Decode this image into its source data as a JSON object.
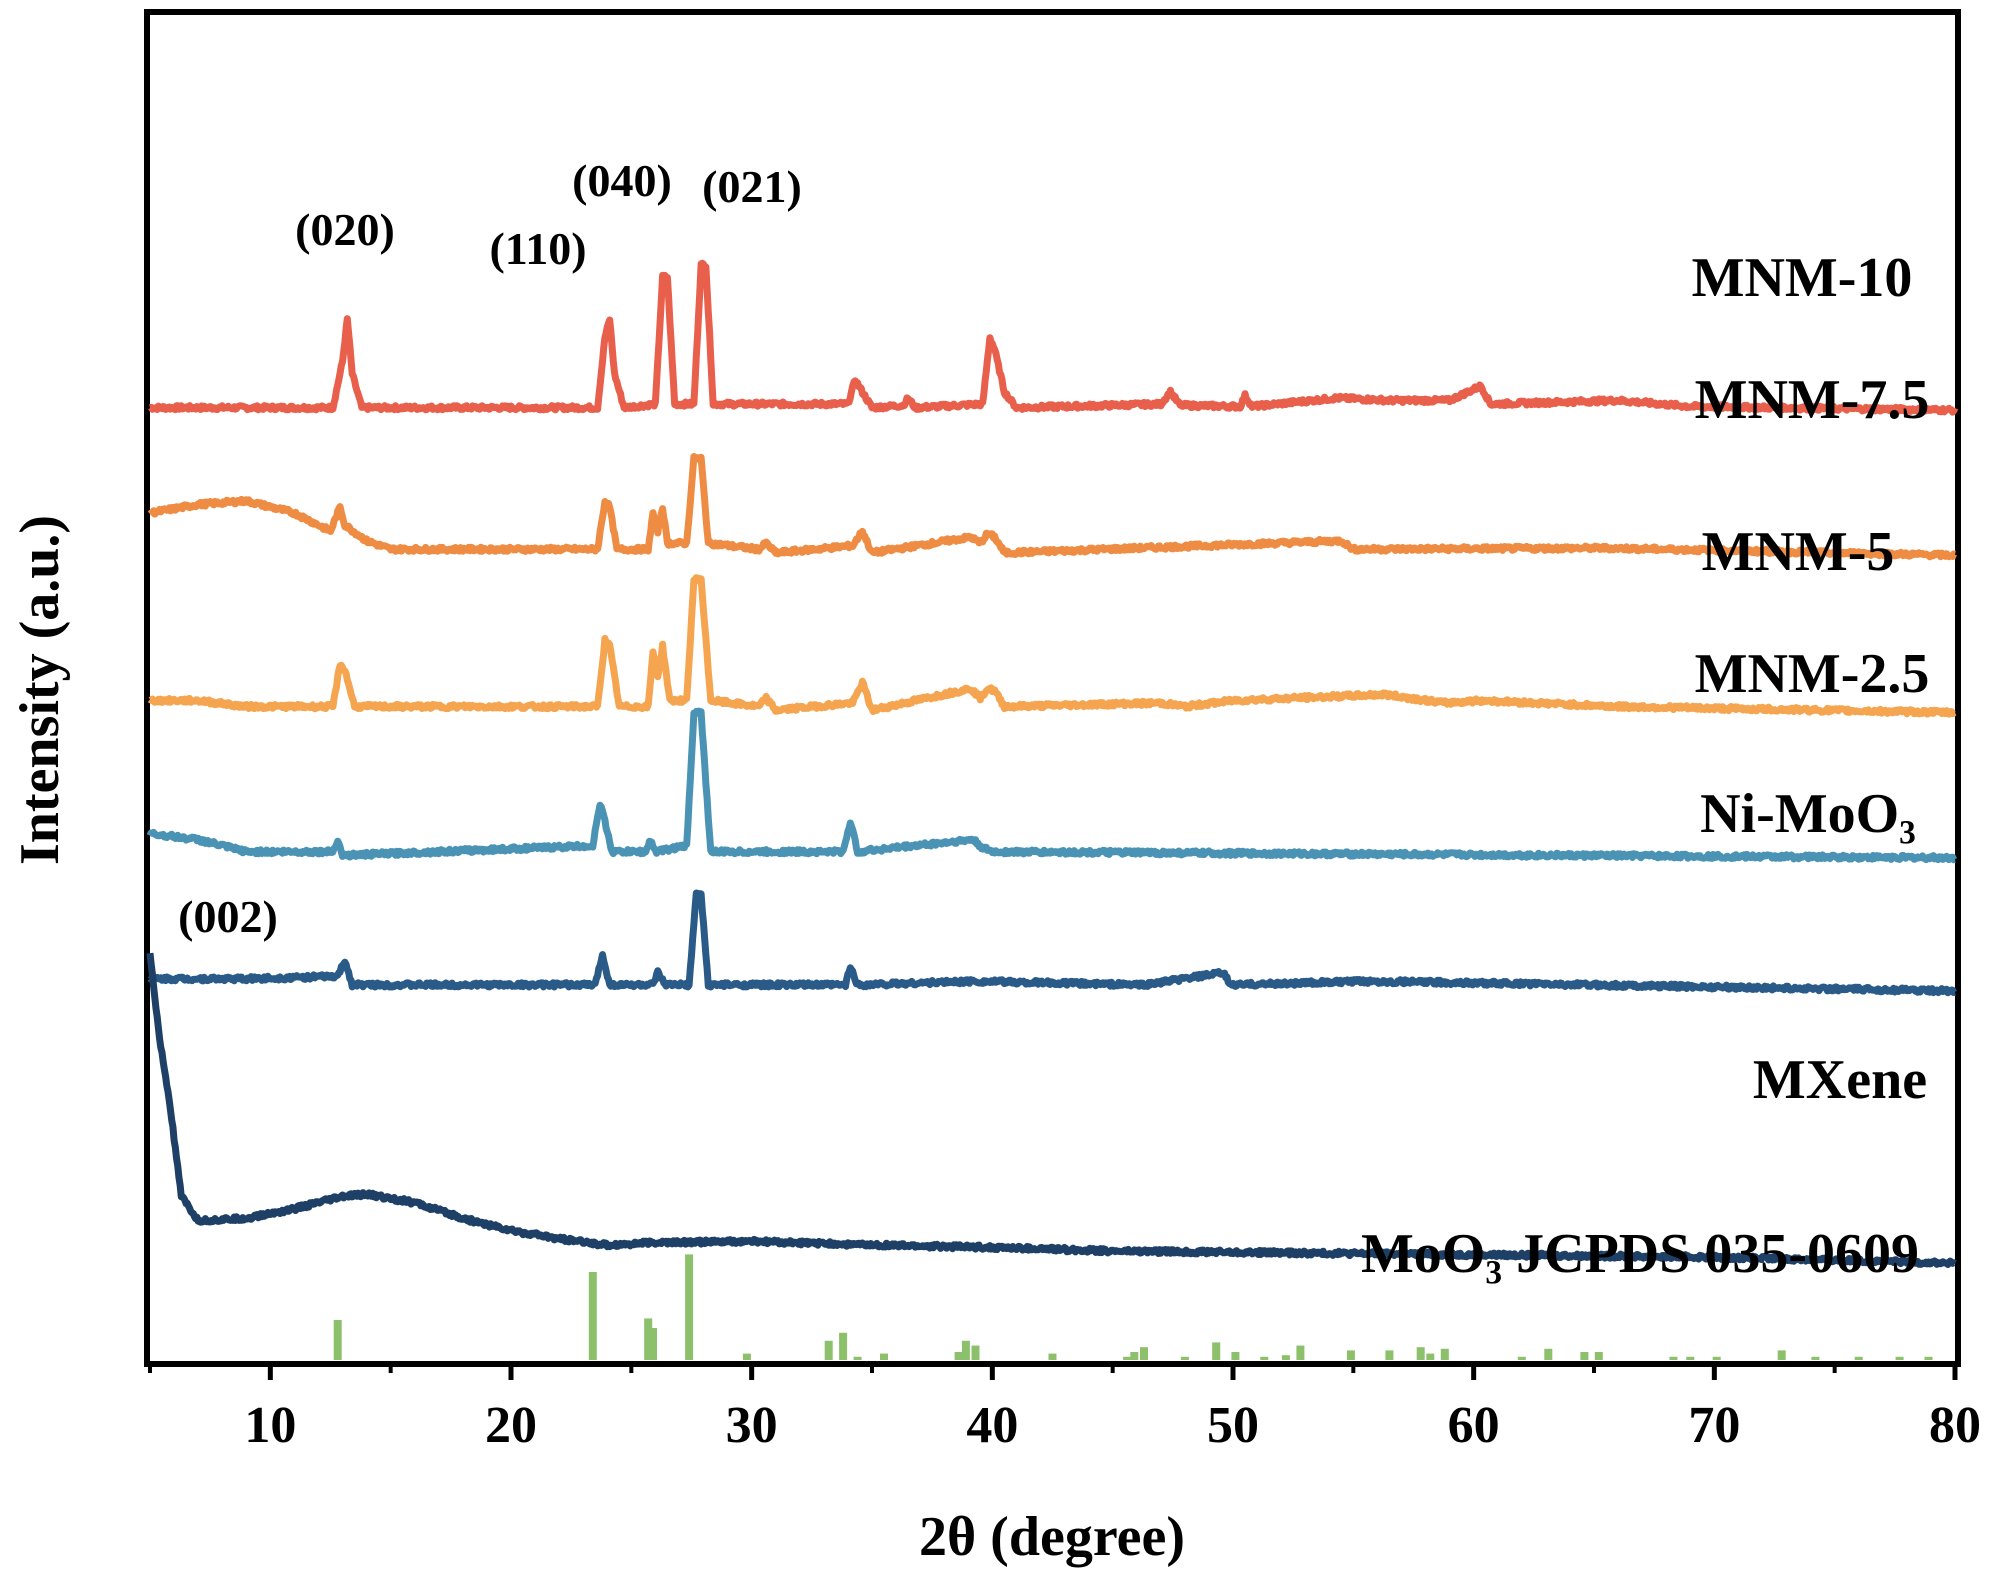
{
  "chart_data": {
    "type": "line",
    "title": "",
    "xlabel": "2θ (degree)",
    "ylabel": "Intensity (a.u.)",
    "xlim": [
      5,
      80
    ],
    "xticks": [
      10,
      20,
      30,
      40,
      50,
      60,
      70,
      80
    ],
    "tick_labels": [
      "10",
      "20",
      "30",
      "40",
      "50",
      "60",
      "70",
      "80"
    ],
    "yticks_shown": false,
    "grid": false,
    "series": [
      {
        "name": "MNM-10",
        "color": "#e8604c",
        "offset": 5.0,
        "points": [
          [
            5,
            0.02
          ],
          [
            12.6,
            0.02
          ],
          [
            13.0,
            0.4
          ],
          [
            13.2,
            0.75
          ],
          [
            13.4,
            0.3
          ],
          [
            13.8,
            0.02
          ],
          [
            23.6,
            0.02
          ],
          [
            23.9,
            0.6
          ],
          [
            24.1,
            0.75
          ],
          [
            24.3,
            0.3
          ],
          [
            24.7,
            0.02
          ],
          [
            26.0,
            0.05
          ],
          [
            26.3,
            1.1
          ],
          [
            26.5,
            1.1
          ],
          [
            26.8,
            0.05
          ],
          [
            27.6,
            0.05
          ],
          [
            27.9,
            1.2
          ],
          [
            28.1,
            1.2
          ],
          [
            28.4,
            0.05
          ],
          [
            34.0,
            0.05
          ],
          [
            34.3,
            0.25
          ],
          [
            34.6,
            0.15
          ],
          [
            35.0,
            0.02
          ],
          [
            36.3,
            0.04
          ],
          [
            36.5,
            0.1
          ],
          [
            36.8,
            0.02
          ],
          [
            39.6,
            0.05
          ],
          [
            39.9,
            0.6
          ],
          [
            40.1,
            0.5
          ],
          [
            40.5,
            0.15
          ],
          [
            41.0,
            0.02
          ],
          [
            47.0,
            0.05
          ],
          [
            47.4,
            0.15
          ],
          [
            47.8,
            0.04
          ],
          [
            50.3,
            0.03
          ],
          [
            50.5,
            0.12
          ],
          [
            50.8,
            0.03
          ],
          [
            54.3,
            0.1
          ],
          [
            56.6,
            0.08
          ],
          [
            59.0,
            0.08
          ],
          [
            60.3,
            0.2
          ],
          [
            60.7,
            0.05
          ],
          [
            66.0,
            0.08
          ],
          [
            69.0,
            0.03
          ],
          [
            80,
            0.0
          ]
        ]
      },
      {
        "name": "MNM-7.5",
        "color": "#ef8c44",
        "offset": 3.8,
        "points": [
          [
            5,
            0.35
          ],
          [
            7,
            0.42
          ],
          [
            9,
            0.45
          ],
          [
            11,
            0.35
          ],
          [
            12.5,
            0.2
          ],
          [
            12.9,
            0.4
          ],
          [
            13.1,
            0.25
          ],
          [
            14,
            0.12
          ],
          [
            15,
            0.05
          ],
          [
            23.6,
            0.05
          ],
          [
            23.9,
            0.45
          ],
          [
            24.1,
            0.4
          ],
          [
            24.4,
            0.05
          ],
          [
            25.7,
            0.05
          ],
          [
            25.9,
            0.35
          ],
          [
            26.1,
            0.2
          ],
          [
            26.3,
            0.4
          ],
          [
            26.5,
            0.1
          ],
          [
            27.3,
            0.1
          ],
          [
            27.6,
            0.8
          ],
          [
            27.9,
            0.8
          ],
          [
            28.2,
            0.1
          ],
          [
            30.3,
            0.05
          ],
          [
            30.6,
            0.1
          ],
          [
            31,
            0.02
          ],
          [
            34.2,
            0.08
          ],
          [
            34.6,
            0.2
          ],
          [
            35,
            0.02
          ],
          [
            39.1,
            0.15
          ],
          [
            39.5,
            0.1
          ],
          [
            39.8,
            0.18
          ],
          [
            40.1,
            0.15
          ],
          [
            40.5,
            0.02
          ],
          [
            54.5,
            0.12
          ],
          [
            55,
            0.05
          ],
          [
            65.5,
            0.06
          ],
          [
            80,
            0.0
          ]
        ]
      },
      {
        "name": "MNM-5",
        "color": "#f5a550",
        "offset": 2.5,
        "points": [
          [
            5,
            0.1
          ],
          [
            7,
            0.1
          ],
          [
            9,
            0.05
          ],
          [
            12.6,
            0.05
          ],
          [
            12.9,
            0.4
          ],
          [
            13.1,
            0.35
          ],
          [
            13.5,
            0.05
          ],
          [
            23.6,
            0.05
          ],
          [
            23.9,
            0.6
          ],
          [
            24.1,
            0.55
          ],
          [
            24.5,
            0.05
          ],
          [
            25.7,
            0.05
          ],
          [
            25.9,
            0.5
          ],
          [
            26.1,
            0.3
          ],
          [
            26.3,
            0.55
          ],
          [
            26.6,
            0.1
          ],
          [
            27.3,
            0.1
          ],
          [
            27.6,
            1.1
          ],
          [
            27.9,
            1.1
          ],
          [
            28.3,
            0.1
          ],
          [
            30.3,
            0.05
          ],
          [
            30.6,
            0.12
          ],
          [
            31,
            0.02
          ],
          [
            34.2,
            0.08
          ],
          [
            34.6,
            0.25
          ],
          [
            35,
            0.02
          ],
          [
            39.1,
            0.2
          ],
          [
            39.5,
            0.12
          ],
          [
            39.8,
            0.2
          ],
          [
            40.1,
            0.18
          ],
          [
            40.5,
            0.05
          ],
          [
            47.0,
            0.08
          ],
          [
            48.0,
            0.05
          ],
          [
            50.0,
            0.1
          ],
          [
            56.3,
            0.15
          ],
          [
            58.8,
            0.08
          ],
          [
            60.3,
            0.1
          ],
          [
            66,
            0.05
          ],
          [
            80,
            0.0
          ]
        ]
      },
      {
        "name": "MNM-2.5",
        "color": "#4a93b5",
        "offset": 1.3,
        "points": [
          [
            5,
            0.2
          ],
          [
            7,
            0.15
          ],
          [
            9,
            0.05
          ],
          [
            12.6,
            0.05
          ],
          [
            12.8,
            0.15
          ],
          [
            13,
            0.02
          ],
          [
            23.4,
            0.1
          ],
          [
            23.7,
            0.45
          ],
          [
            23.9,
            0.3
          ],
          [
            24.2,
            0.05
          ],
          [
            25.6,
            0.05
          ],
          [
            25.8,
            0.15
          ],
          [
            26,
            0.05
          ],
          [
            27.3,
            0.1
          ],
          [
            27.6,
            1.2
          ],
          [
            27.9,
            1.2
          ],
          [
            28.3,
            0.05
          ],
          [
            33.8,
            0.05
          ],
          [
            34.1,
            0.3
          ],
          [
            34.4,
            0.05
          ],
          [
            35.8,
            0.08
          ],
          [
            39.2,
            0.15
          ],
          [
            39.6,
            0.08
          ],
          [
            40,
            0.05
          ],
          [
            80,
            0.0
          ]
        ]
      },
      {
        "name": "Ni-MoO₃",
        "color": "#2a5a88",
        "offset": 0.2,
        "points": [
          [
            5,
            0.1
          ],
          [
            9,
            0.1
          ],
          [
            12.8,
            0.12
          ],
          [
            13.1,
            0.25
          ],
          [
            13.4,
            0.05
          ],
          [
            23.5,
            0.05
          ],
          [
            23.8,
            0.3
          ],
          [
            24.1,
            0.05
          ],
          [
            25.9,
            0.05
          ],
          [
            26.1,
            0.15
          ],
          [
            26.4,
            0.05
          ],
          [
            27.4,
            0.05
          ],
          [
            27.7,
            0.8
          ],
          [
            27.9,
            0.8
          ],
          [
            28.2,
            0.05
          ],
          [
            33.9,
            0.05
          ],
          [
            34.1,
            0.2
          ],
          [
            34.4,
            0.05
          ],
          [
            39.2,
            0.08
          ],
          [
            46.3,
            0.05
          ],
          [
            49.6,
            0.15
          ],
          [
            49.9,
            0.05
          ],
          [
            55.7,
            0.08
          ],
          [
            80,
            0.0
          ]
        ]
      },
      {
        "name": "MXene",
        "color": "#1e3f66",
        "offset": -2.0,
        "points": [
          [
            5,
            2.5
          ],
          [
            5.4,
            1.8
          ],
          [
            5.8,
            1.3
          ],
          [
            6.3,
            0.5
          ],
          [
            7,
            0.3
          ],
          [
            9,
            0.32
          ],
          [
            11,
            0.4
          ],
          [
            13,
            0.5
          ],
          [
            14,
            0.52
          ],
          [
            16,
            0.45
          ],
          [
            18,
            0.32
          ],
          [
            20,
            0.22
          ],
          [
            22,
            0.15
          ],
          [
            24,
            0.1
          ],
          [
            26,
            0.12
          ],
          [
            30,
            0.13
          ],
          [
            35,
            0.1
          ],
          [
            40,
            0.08
          ],
          [
            45,
            0.05
          ],
          [
            50,
            0.04
          ],
          [
            60,
            0.02
          ],
          [
            70,
            0.0
          ],
          [
            80,
            -0.05
          ]
        ]
      }
    ],
    "reference": {
      "name": "MoO₃ JCPDS 035-0609",
      "color": "#8cc06a",
      "bars": [
        [
          12.8,
          0.25
        ],
        [
          23.4,
          0.55
        ],
        [
          25.7,
          0.26
        ],
        [
          25.9,
          0.2
        ],
        [
          27.4,
          0.66
        ],
        [
          29.8,
          0.04
        ],
        [
          33.2,
          0.12
        ],
        [
          33.8,
          0.17
        ],
        [
          34.4,
          0.02
        ],
        [
          35.5,
          0.04
        ],
        [
          38.6,
          0.05
        ],
        [
          38.9,
          0.12
        ],
        [
          39.3,
          0.09
        ],
        [
          42.5,
          0.04
        ],
        [
          45.6,
          0.02
        ],
        [
          45.9,
          0.05
        ],
        [
          46.3,
          0.08
        ],
        [
          48,
          0.02
        ],
        [
          49.3,
          0.11
        ],
        [
          50.1,
          0.05
        ],
        [
          51.3,
          0.02
        ],
        [
          52.2,
          0.03
        ],
        [
          52.8,
          0.09
        ],
        [
          54.9,
          0.06
        ],
        [
          56.5,
          0.06
        ],
        [
          57.8,
          0.08
        ],
        [
          58.2,
          0.04
        ],
        [
          58.8,
          0.07
        ],
        [
          62,
          0.02
        ],
        [
          63.1,
          0.07
        ],
        [
          64.6,
          0.05
        ],
        [
          65.2,
          0.05
        ],
        [
          68.3,
          0.02
        ],
        [
          69,
          0.02
        ],
        [
          70.1,
          0.02
        ],
        [
          72.8,
          0.06
        ],
        [
          74.2,
          0.02
        ],
        [
          76,
          0.02
        ],
        [
          77.7,
          0.02
        ],
        [
          78.9,
          0.02
        ]
      ]
    },
    "annotations": [
      {
        "text": "(020)",
        "x": 13.2
      },
      {
        "text": "(110)",
        "x": 24.0
      },
      {
        "text": "(040)",
        "x": 26.4
      },
      {
        "text": "(021)",
        "x": 28.0
      },
      {
        "text": "(002)",
        "x": 5.0
      }
    ]
  }
}
